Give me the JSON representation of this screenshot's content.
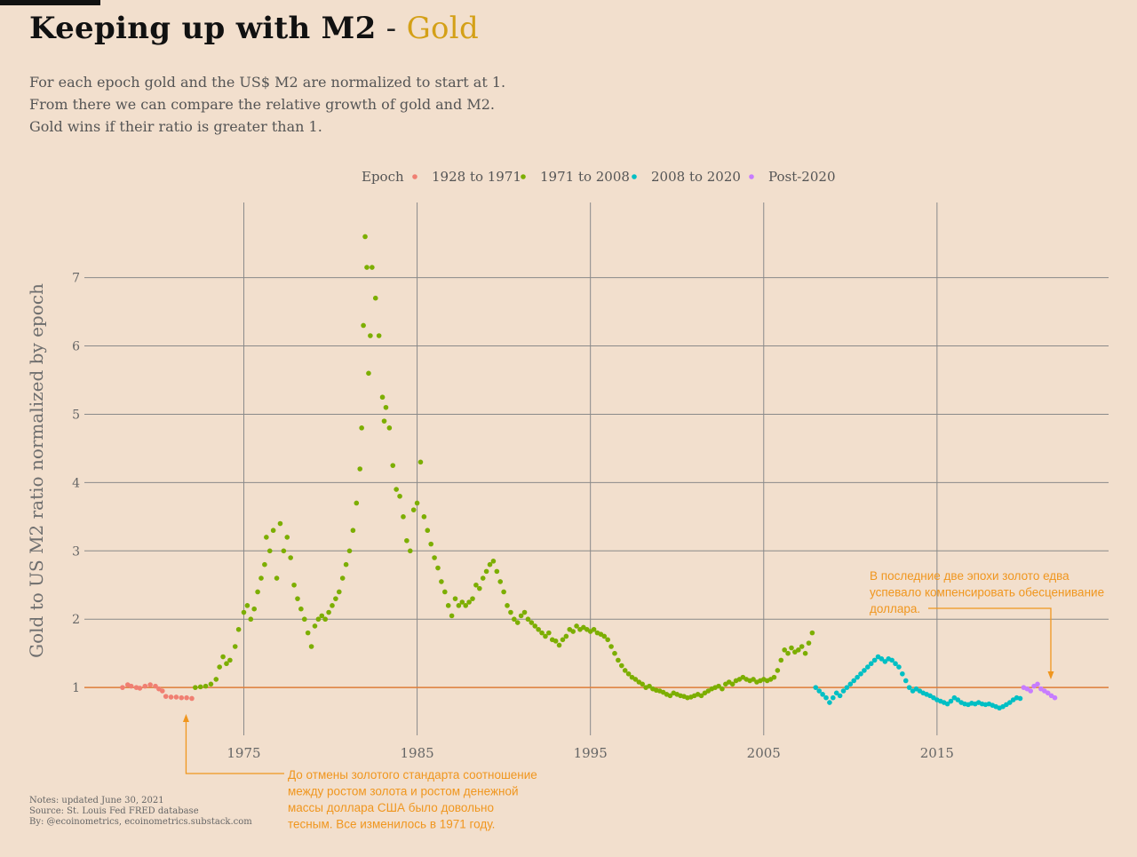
{
  "header": {
    "title_main": "Keeping up with M2",
    "title_sep": " - ",
    "title_accent": "Gold",
    "subtitle_lines": [
      "For each epoch gold and the US$ M2 are normalized to start at 1.",
      "From there we can compare the relative growth of gold and M2.",
      "Gold wins if their ratio is greater than 1."
    ]
  },
  "notes": [
    "Notes: updated June 30, 2021",
    "Source: St. Louis Fed FRED database",
    "By: @ecoinometrics, ecoinometrics.substack.com"
  ],
  "colors": {
    "background": "#f2dfcd",
    "grid": "#8a8a8a",
    "reference_line": "#e07f3b",
    "annotation": "#f0961e",
    "title_accent": "#d4a017"
  },
  "annotations": [
    {
      "id": "gold-standard-note",
      "lines": [
        "До отмены золотого стандарта соотношение",
        "между ростом золота и ростом денежной",
        "массы доллара США было довольно",
        "тесным. Все изменилось в 1971 году."
      ],
      "points_to": {
        "x": 1971,
        "y": 0.75
      }
    },
    {
      "id": "last-epochs-note",
      "lines": [
        "В последние две эпохи золото едва",
        "успевало компенсировать обесценивание",
        "доллара."
      ],
      "points_to": {
        "x": 2020.8,
        "y": 1.2
      }
    }
  ],
  "chart_data": {
    "type": "scatter",
    "title": "Keeping up with M2 - Gold",
    "ylabel": "Gold to US M2 ratio normalized by epoch",
    "xlabel": "",
    "xlim": [
      1965.8,
      2024.9
    ],
    "ylim": [
      0.3,
      8.1
    ],
    "x_ticks": [
      1975,
      1985,
      1995,
      2005,
      2015
    ],
    "y_ticks": [
      1,
      2,
      3,
      4,
      5,
      6,
      7
    ],
    "grid": true,
    "reference_line": {
      "y": 1
    },
    "legend": {
      "title": "Epoch",
      "position": "top"
    },
    "series": [
      {
        "name": "1928 to 1971",
        "color": "#f07f72",
        "points": [
          [
            1968.0,
            1.0
          ],
          [
            1968.3,
            1.04
          ],
          [
            1968.5,
            1.02
          ],
          [
            1968.8,
            1.0
          ],
          [
            1969.0,
            0.99
          ],
          [
            1969.3,
            1.02
          ],
          [
            1969.6,
            1.04
          ],
          [
            1969.9,
            1.02
          ],
          [
            1970.1,
            0.98
          ],
          [
            1970.3,
            0.95
          ],
          [
            1970.5,
            0.87
          ],
          [
            1970.8,
            0.86
          ],
          [
            1971.1,
            0.86
          ],
          [
            1971.4,
            0.85
          ],
          [
            1971.7,
            0.85
          ],
          [
            1972.0,
            0.84
          ]
        ]
      },
      {
        "name": "1971 to 2008",
        "color": "#7cae00",
        "points": [
          [
            1972.2,
            1.0
          ],
          [
            1972.5,
            1.01
          ],
          [
            1972.8,
            1.02
          ],
          [
            1973.1,
            1.05
          ],
          [
            1973.4,
            1.12
          ],
          [
            1973.6,
            1.3
          ],
          [
            1973.8,
            1.45
          ],
          [
            1974.0,
            1.35
          ],
          [
            1974.2,
            1.4
          ],
          [
            1974.5,
            1.6
          ],
          [
            1974.7,
            1.85
          ],
          [
            1975.0,
            2.1
          ],
          [
            1975.2,
            2.2
          ],
          [
            1975.4,
            2.0
          ],
          [
            1975.6,
            2.15
          ],
          [
            1975.8,
            2.4
          ],
          [
            1976.0,
            2.6
          ],
          [
            1976.2,
            2.8
          ],
          [
            1976.3,
            3.2
          ],
          [
            1976.5,
            3.0
          ],
          [
            1976.7,
            3.3
          ],
          [
            1976.9,
            2.6
          ],
          [
            1977.1,
            3.4
          ],
          [
            1977.3,
            3.0
          ],
          [
            1977.5,
            3.2
          ],
          [
            1977.7,
            2.9
          ],
          [
            1977.9,
            2.5
          ],
          [
            1978.1,
            2.3
          ],
          [
            1978.3,
            2.15
          ],
          [
            1978.5,
            2.0
          ],
          [
            1978.7,
            1.8
          ],
          [
            1978.9,
            1.6
          ],
          [
            1979.1,
            1.9
          ],
          [
            1979.3,
            2.0
          ],
          [
            1979.5,
            2.05
          ],
          [
            1979.7,
            2.0
          ],
          [
            1979.9,
            2.1
          ],
          [
            1980.1,
            2.2
          ],
          [
            1980.3,
            2.3
          ],
          [
            1980.5,
            2.4
          ],
          [
            1980.7,
            2.6
          ],
          [
            1980.9,
            2.8
          ],
          [
            1981.1,
            3.0
          ],
          [
            1981.3,
            3.3
          ],
          [
            1981.5,
            3.7
          ],
          [
            1981.7,
            4.2
          ],
          [
            1981.8,
            4.8
          ],
          [
            1981.9,
            6.3
          ],
          [
            1982.0,
            7.6
          ],
          [
            1982.1,
            7.15
          ],
          [
            1982.2,
            5.6
          ],
          [
            1982.3,
            6.15
          ],
          [
            1982.4,
            7.15
          ],
          [
            1982.6,
            6.7
          ],
          [
            1982.8,
            6.15
          ],
          [
            1983.0,
            5.25
          ],
          [
            1983.1,
            4.9
          ],
          [
            1983.2,
            5.1
          ],
          [
            1983.4,
            4.8
          ],
          [
            1983.6,
            4.25
          ],
          [
            1983.8,
            3.9
          ],
          [
            1984.0,
            3.8
          ],
          [
            1984.2,
            3.5
          ],
          [
            1984.4,
            3.15
          ],
          [
            1984.6,
            3.0
          ],
          [
            1984.8,
            3.6
          ],
          [
            1985.0,
            3.7
          ],
          [
            1985.2,
            4.3
          ],
          [
            1985.4,
            3.5
          ],
          [
            1985.6,
            3.3
          ],
          [
            1985.8,
            3.1
          ],
          [
            1986.0,
            2.9
          ],
          [
            1986.2,
            2.75
          ],
          [
            1986.4,
            2.55
          ],
          [
            1986.6,
            2.4
          ],
          [
            1986.8,
            2.2
          ],
          [
            1987.0,
            2.05
          ],
          [
            1987.2,
            2.3
          ],
          [
            1987.4,
            2.2
          ],
          [
            1987.6,
            2.25
          ],
          [
            1987.8,
            2.2
          ],
          [
            1988.0,
            2.25
          ],
          [
            1988.2,
            2.3
          ],
          [
            1988.4,
            2.5
          ],
          [
            1988.6,
            2.45
          ],
          [
            1988.8,
            2.6
          ],
          [
            1989.0,
            2.7
          ],
          [
            1989.2,
            2.8
          ],
          [
            1989.4,
            2.85
          ],
          [
            1989.6,
            2.7
          ],
          [
            1989.8,
            2.55
          ],
          [
            1990.0,
            2.4
          ],
          [
            1990.2,
            2.2
          ],
          [
            1990.4,
            2.1
          ],
          [
            1990.6,
            2.0
          ],
          [
            1990.8,
            1.95
          ],
          [
            1991.0,
            2.05
          ],
          [
            1991.2,
            2.1
          ],
          [
            1991.4,
            2.0
          ],
          [
            1991.6,
            1.95
          ],
          [
            1991.8,
            1.9
          ],
          [
            1992.0,
            1.85
          ],
          [
            1992.2,
            1.8
          ],
          [
            1992.4,
            1.75
          ],
          [
            1992.6,
            1.8
          ],
          [
            1992.8,
            1.7
          ],
          [
            1993.0,
            1.68
          ],
          [
            1993.2,
            1.62
          ],
          [
            1993.4,
            1.7
          ],
          [
            1993.6,
            1.75
          ],
          [
            1993.8,
            1.85
          ],
          [
            1994.0,
            1.82
          ],
          [
            1994.2,
            1.9
          ],
          [
            1994.4,
            1.85
          ],
          [
            1994.6,
            1.88
          ],
          [
            1994.8,
            1.85
          ],
          [
            1995.0,
            1.82
          ],
          [
            1995.2,
            1.85
          ],
          [
            1995.4,
            1.8
          ],
          [
            1995.6,
            1.78
          ],
          [
            1995.8,
            1.75
          ],
          [
            1996.0,
            1.7
          ],
          [
            1996.2,
            1.6
          ],
          [
            1996.4,
            1.5
          ],
          [
            1996.6,
            1.4
          ],
          [
            1996.8,
            1.32
          ],
          [
            1997.0,
            1.25
          ],
          [
            1997.2,
            1.2
          ],
          [
            1997.4,
            1.15
          ],
          [
            1997.6,
            1.12
          ],
          [
            1997.8,
            1.08
          ],
          [
            1998.0,
            1.05
          ],
          [
            1998.2,
            1.0
          ],
          [
            1998.4,
            1.02
          ],
          [
            1998.6,
            0.98
          ],
          [
            1998.8,
            0.96
          ],
          [
            1999.0,
            0.95
          ],
          [
            1999.2,
            0.93
          ],
          [
            1999.4,
            0.9
          ],
          [
            1999.6,
            0.88
          ],
          [
            1999.8,
            0.92
          ],
          [
            2000.0,
            0.9
          ],
          [
            2000.2,
            0.88
          ],
          [
            2000.4,
            0.87
          ],
          [
            2000.6,
            0.85
          ],
          [
            2000.8,
            0.86
          ],
          [
            2001.0,
            0.88
          ],
          [
            2001.2,
            0.9
          ],
          [
            2001.4,
            0.88
          ],
          [
            2001.6,
            0.92
          ],
          [
            2001.8,
            0.95
          ],
          [
            2002.0,
            0.98
          ],
          [
            2002.2,
            1.0
          ],
          [
            2002.4,
            1.02
          ],
          [
            2002.6,
            0.98
          ],
          [
            2002.8,
            1.05
          ],
          [
            2003.0,
            1.08
          ],
          [
            2003.2,
            1.05
          ],
          [
            2003.4,
            1.1
          ],
          [
            2003.6,
            1.12
          ],
          [
            2003.8,
            1.15
          ],
          [
            2004.0,
            1.12
          ],
          [
            2004.2,
            1.1
          ],
          [
            2004.4,
            1.12
          ],
          [
            2004.6,
            1.08
          ],
          [
            2004.8,
            1.1
          ],
          [
            2005.0,
            1.12
          ],
          [
            2005.2,
            1.1
          ],
          [
            2005.4,
            1.12
          ],
          [
            2005.6,
            1.15
          ],
          [
            2005.8,
            1.25
          ],
          [
            2006.0,
            1.4
          ],
          [
            2006.2,
            1.55
          ],
          [
            2006.4,
            1.5
          ],
          [
            2006.6,
            1.58
          ],
          [
            2006.8,
            1.52
          ],
          [
            2007.0,
            1.55
          ],
          [
            2007.2,
            1.6
          ],
          [
            2007.4,
            1.5
          ],
          [
            2007.6,
            1.65
          ],
          [
            2007.8,
            1.8
          ]
        ]
      },
      {
        "name": "2008 to 2020",
        "color": "#00bfc4",
        "points": [
          [
            2008.0,
            1.0
          ],
          [
            2008.2,
            0.95
          ],
          [
            2008.4,
            0.9
          ],
          [
            2008.6,
            0.85
          ],
          [
            2008.8,
            0.78
          ],
          [
            2009.0,
            0.85
          ],
          [
            2009.2,
            0.92
          ],
          [
            2009.4,
            0.88
          ],
          [
            2009.6,
            0.95
          ],
          [
            2009.8,
            1.0
          ],
          [
            2010.0,
            1.05
          ],
          [
            2010.2,
            1.1
          ],
          [
            2010.4,
            1.15
          ],
          [
            2010.6,
            1.2
          ],
          [
            2010.8,
            1.25
          ],
          [
            2011.0,
            1.3
          ],
          [
            2011.2,
            1.35
          ],
          [
            2011.4,
            1.4
          ],
          [
            2011.6,
            1.45
          ],
          [
            2011.8,
            1.42
          ],
          [
            2012.0,
            1.38
          ],
          [
            2012.2,
            1.42
          ],
          [
            2012.4,
            1.4
          ],
          [
            2012.6,
            1.35
          ],
          [
            2012.8,
            1.3
          ],
          [
            2013.0,
            1.2
          ],
          [
            2013.2,
            1.1
          ],
          [
            2013.4,
            1.0
          ],
          [
            2013.6,
            0.95
          ],
          [
            2013.8,
            0.98
          ],
          [
            2014.0,
            0.95
          ],
          [
            2014.2,
            0.92
          ],
          [
            2014.4,
            0.9
          ],
          [
            2014.6,
            0.88
          ],
          [
            2014.8,
            0.85
          ],
          [
            2015.0,
            0.82
          ],
          [
            2015.2,
            0.8
          ],
          [
            2015.4,
            0.78
          ],
          [
            2015.6,
            0.76
          ],
          [
            2015.8,
            0.8
          ],
          [
            2016.0,
            0.85
          ],
          [
            2016.2,
            0.82
          ],
          [
            2016.4,
            0.78
          ],
          [
            2016.6,
            0.76
          ],
          [
            2016.8,
            0.75
          ],
          [
            2017.0,
            0.77
          ],
          [
            2017.2,
            0.76
          ],
          [
            2017.4,
            0.78
          ],
          [
            2017.6,
            0.76
          ],
          [
            2017.8,
            0.75
          ],
          [
            2018.0,
            0.76
          ],
          [
            2018.2,
            0.74
          ],
          [
            2018.4,
            0.72
          ],
          [
            2018.6,
            0.7
          ],
          [
            2018.8,
            0.72
          ],
          [
            2019.0,
            0.75
          ],
          [
            2019.2,
            0.78
          ],
          [
            2019.4,
            0.82
          ],
          [
            2019.6,
            0.85
          ],
          [
            2019.8,
            0.84
          ]
        ]
      },
      {
        "name": "Post-2020",
        "color": "#c77cff",
        "points": [
          [
            2020.0,
            1.0
          ],
          [
            2020.2,
            0.98
          ],
          [
            2020.4,
            0.95
          ],
          [
            2020.6,
            1.02
          ],
          [
            2020.8,
            1.05
          ],
          [
            2021.0,
            0.98
          ],
          [
            2021.2,
            0.95
          ],
          [
            2021.4,
            0.92
          ],
          [
            2021.6,
            0.88
          ],
          [
            2021.8,
            0.85
          ]
        ]
      }
    ]
  }
}
